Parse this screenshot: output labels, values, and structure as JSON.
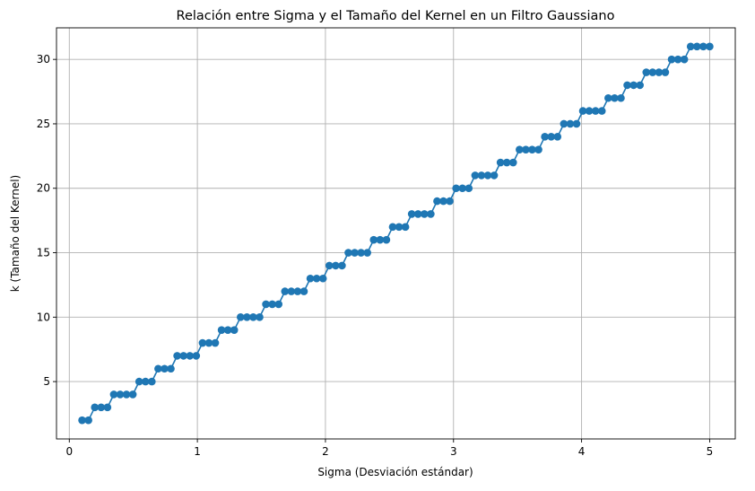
{
  "chart_data": {
    "type": "line",
    "title": "Relación entre Sigma y el Tamaño del Kernel en un Filtro Gaussiano",
    "xlabel": "Sigma (Desviación estándar)",
    "ylabel": "k (Tamaño del Kernel)",
    "xlim": [
      -0.1,
      5.2
    ],
    "ylim": [
      0.55,
      32.45
    ],
    "xticks": [
      0,
      1,
      2,
      3,
      4,
      5
    ],
    "yticks": [
      5,
      10,
      15,
      20,
      25,
      30
    ],
    "grid": true,
    "marker": "circle",
    "color": "#1f77b4",
    "sigma_start": 0.1,
    "sigma_end": 5.0,
    "num_points": 100,
    "series": [
      {
        "x": [
          0.1,
          0.1495,
          0.199,
          0.2485,
          0.298,
          0.3475,
          0.397,
          0.4465,
          0.496,
          0.5455,
          0.595,
          0.6444,
          0.6939,
          0.7434,
          0.7929,
          0.8424,
          0.8919,
          0.9414,
          0.9909,
          1.0404,
          1.0899,
          1.1394,
          1.1889,
          1.2384,
          1.2879,
          1.3374,
          1.3869,
          1.4364,
          1.4859,
          1.5354,
          1.5848,
          1.6343,
          1.6838,
          1.7333,
          1.7828,
          1.8323,
          1.8818,
          1.9313,
          1.9808,
          2.0303,
          2.0798,
          2.1293,
          2.1788,
          2.2283,
          2.2778,
          2.3273,
          2.3768,
          2.4263,
          2.4758,
          2.5253,
          2.5747,
          2.6242,
          2.6737,
          2.7232,
          2.7727,
          2.8222,
          2.8717,
          2.9212,
          2.9707,
          3.0202,
          3.0697,
          3.1192,
          3.1687,
          3.2182,
          3.2677,
          3.3172,
          3.3667,
          3.4162,
          3.4657,
          3.5152,
          3.5646,
          3.6141,
          3.6636,
          3.7131,
          3.7626,
          3.8121,
          3.8616,
          3.9111,
          3.9606,
          4.0101,
          4.0596,
          4.1091,
          4.1586,
          4.2081,
          4.2576,
          4.3071,
          4.3566,
          4.4061,
          4.4556,
          4.5051,
          4.5545,
          4.604,
          4.6535,
          4.703,
          4.7525,
          4.802,
          4.8515,
          4.901,
          4.9505,
          5.0
        ],
        "y": [
          2,
          2,
          3,
          3,
          3,
          4,
          4,
          4,
          4,
          5,
          5,
          5,
          6,
          6,
          6,
          7,
          7,
          7,
          7,
          8,
          8,
          8,
          9,
          9,
          9,
          10,
          10,
          10,
          10,
          11,
          11,
          11,
          12,
          12,
          12,
          12,
          13,
          13,
          13,
          14,
          14,
          14,
          15,
          15,
          15,
          15,
          16,
          16,
          16,
          17,
          17,
          17,
          18,
          18,
          18,
          18,
          19,
          19,
          19,
          20,
          20,
          20,
          21,
          21,
          21,
          21,
          22,
          22,
          22,
          23,
          23,
          23,
          23,
          24,
          24,
          24,
          25,
          25,
          25,
          26,
          26,
          26,
          26,
          27,
          27,
          27,
          28,
          28,
          28,
          29,
          29,
          29,
          29,
          30,
          30,
          30,
          31,
          31,
          31,
          31
        ]
      }
    ]
  }
}
